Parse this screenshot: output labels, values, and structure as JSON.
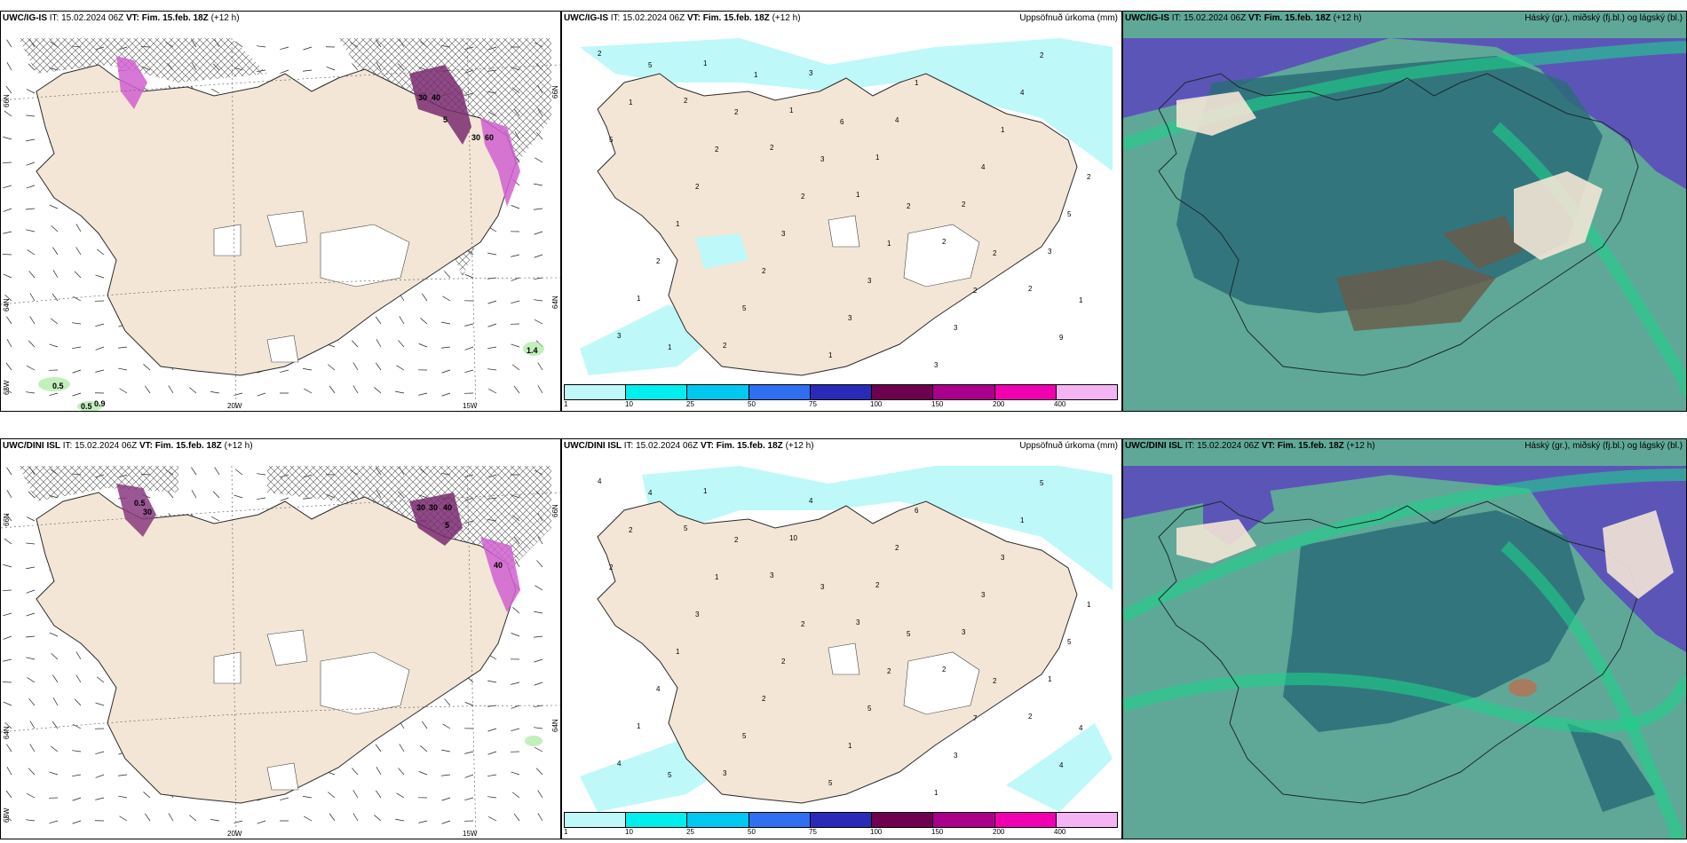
{
  "rows": [
    {
      "model": "UWC/IG-IS",
      "init_label": "IT:",
      "init_time": "15.02.2024 06Z",
      "valid_label": "VT:",
      "valid_time": "Fim. 15.feb. 18Z",
      "lead": "(+12 h)"
    },
    {
      "model": "UWC/DINI ISL",
      "init_label": "IT:",
      "init_time": "15.02.2024 06Z",
      "valid_label": "VT:",
      "valid_time": "Fim. 15.feb. 18Z",
      "lead": "(+12 h)"
    }
  ],
  "panel_titles": {
    "precip": "Uppsöfnuð úrkoma (mm)",
    "cloud": "Háský (gr.), miðský (fj.bl.) og lágský (bl.)"
  },
  "wind_map": {
    "lat_labels": [
      "66N",
      "64N",
      "65W"
    ],
    "lon_labels": [
      "20W",
      "15W"
    ],
    "right_labels": [
      "66N",
      "64N"
    ],
    "row1_values": [
      "30",
      "40",
      "5",
      "30",
      "60",
      "0.5",
      "0.5",
      "0.9",
      "1.4"
    ],
    "row2_values": [
      "30",
      "30",
      "40",
      "5",
      "0.5",
      "30",
      "40"
    ]
  },
  "precip_legend": {
    "ticks": [
      "1",
      "10",
      "25",
      "50",
      "75",
      "100",
      "150",
      "200",
      "400"
    ],
    "colors": [
      "#bff8f8",
      "#00eeee",
      "#00c8ee",
      "#2f6ff0",
      "#2a2ab8",
      "#6e0050",
      "#a8008a",
      "#f000b0",
      "#f4b4f4"
    ]
  },
  "precip_values_row1": [
    "2",
    "2",
    "2",
    "1",
    "2",
    "2",
    "3",
    "1",
    "1",
    "1",
    "2",
    "3",
    "1",
    "2",
    "3",
    "4",
    "4",
    "5",
    "2",
    "5",
    "1",
    "1",
    "1",
    "2",
    "1",
    "2",
    "3",
    "3",
    "4",
    "5",
    "2",
    "3",
    "3",
    "3",
    "2",
    "1",
    "2",
    "2",
    "1",
    "2",
    "9",
    "5",
    "2",
    "3",
    "2",
    "2",
    "1",
    "1",
    "1",
    "6"
  ],
  "precip_values_row2": [
    "4",
    "5",
    "3",
    "3",
    "2",
    "2",
    "4",
    "1",
    "10",
    "2",
    "3",
    "1",
    "1",
    "3",
    "4",
    "2",
    "3",
    "5",
    "4",
    "5",
    "5",
    "6",
    "3",
    "1",
    "1",
    "2",
    "1",
    "1",
    "1",
    "2",
    "3",
    "2",
    "5",
    "3",
    "5",
    "2",
    "1",
    "2",
    "2",
    "7",
    "4",
    "4",
    "2",
    "3",
    "5",
    "2",
    "4",
    "5"
  ],
  "colors": {
    "land": "#f3e6d6",
    "ocean": "#ffffff",
    "ice": "#ffffff",
    "coast": "#2a2a2a",
    "precip_light": "#bff8f8",
    "cloud_high": "#5c55b8",
    "cloud_mid": "#2c6c78",
    "cloud_low": "#5fa898",
    "cloud_edge": "#1ed08a",
    "cloud_brown": "#6a5a48"
  }
}
